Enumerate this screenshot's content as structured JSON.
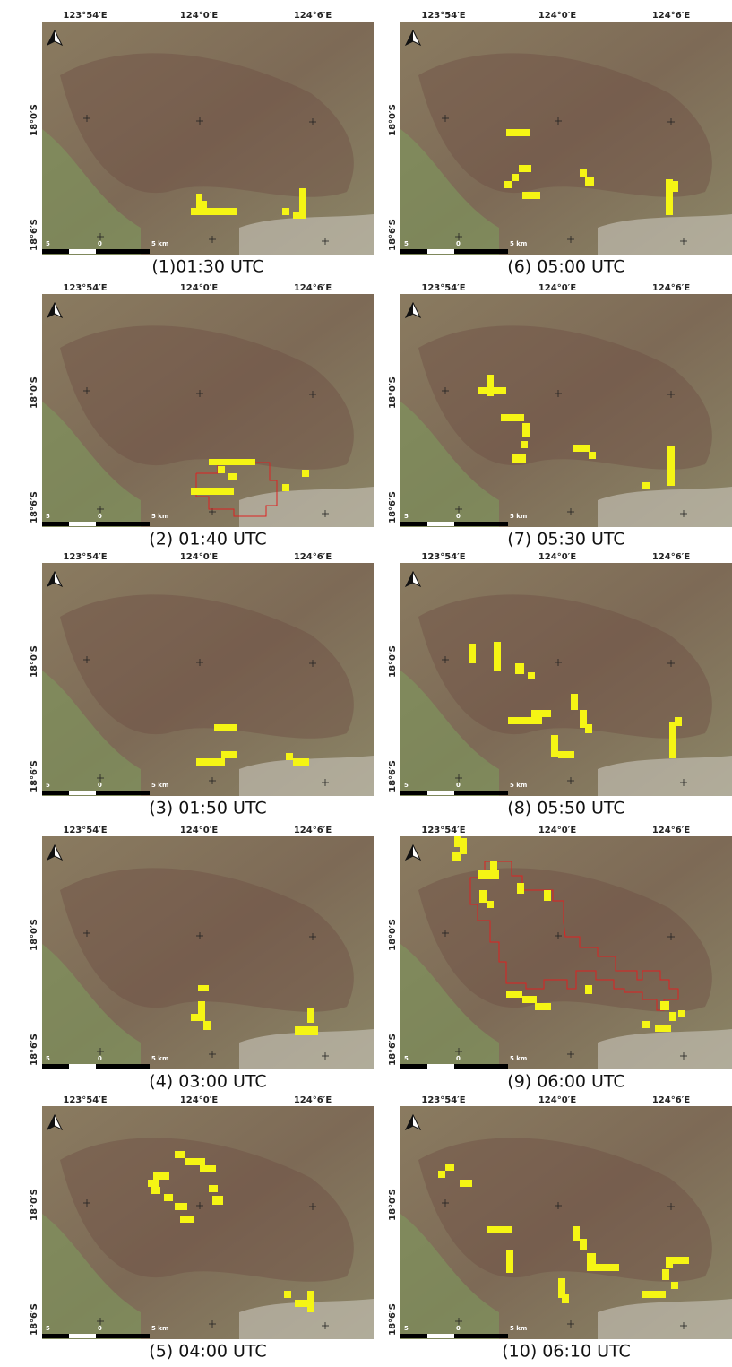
{
  "lon_labels": [
    "123°54′E",
    "124°0′E",
    "124°6′E"
  ],
  "lat_labels": [
    "18°0′S",
    "18°6′S"
  ],
  "scale_labels": [
    "5",
    "0",
    "5 km"
  ],
  "panels": [
    {
      "caption": "(1)01:30 UTC"
    },
    {
      "caption": "(2) 01:40 UTC"
    },
    {
      "caption": "(3) 01:50 UTC"
    },
    {
      "caption": "(4) 03:00 UTC"
    },
    {
      "caption": "(5) 04:00 UTC"
    },
    {
      "caption": "(6) 05:00 UTC"
    },
    {
      "caption": "(7) 05:30 UTC"
    },
    {
      "caption": "(8) 05:50 UTC"
    },
    {
      "caption": "(9) 06:00 UTC"
    },
    {
      "caption": "(10) 06:10 UTC"
    }
  ]
}
